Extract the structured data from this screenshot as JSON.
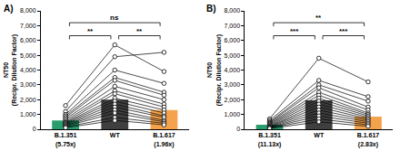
{
  "chart_data": [
    {
      "type": "bar",
      "title": "A)",
      "categories": [
        "B.1.351\n(5.75x)",
        "WT",
        "B.1.617\n(1.96x)"
      ],
      "values": [
        600,
        2000,
        1300
      ],
      "colors": [
        "#2a9d6f",
        "#3f3f3f",
        "#f4a24c"
      ],
      "paired_values": [
        [
          1600,
          5700,
          3900
        ],
        [
          1200,
          4900,
          5200
        ],
        [
          1000,
          4000,
          3100
        ],
        [
          900,
          3500,
          2500
        ],
        [
          800,
          3300,
          2300
        ],
        [
          700,
          2900,
          2000
        ],
        [
          600,
          2600,
          1700
        ],
        [
          500,
          2400,
          1500
        ],
        [
          450,
          2100,
          1300
        ],
        [
          400,
          1900,
          1100
        ],
        [
          350,
          1700,
          900
        ],
        [
          300,
          1500,
          800
        ],
        [
          250,
          1300,
          600
        ],
        [
          200,
          1100,
          500
        ],
        [
          150,
          800,
          400
        ],
        [
          100,
          600,
          300
        ]
      ],
      "brackets": [
        {
          "from": 0,
          "to": 1,
          "text": "**"
        },
        {
          "from": 1,
          "to": 2,
          "text": "**"
        },
        {
          "from": 0,
          "to": 2,
          "text": "ns"
        }
      ],
      "ylabel": "NT50\n(Recipr. Dilution Factor)",
      "ylim": [
        0,
        8000
      ],
      "yticks": [
        0,
        {
          "value": 1000,
          "label": "1,000"
        },
        {
          "value": 2000,
          "label": "2,000"
        },
        {
          "value": 3000,
          "label": "3,000"
        },
        {
          "value": 4000,
          "label": "4,000"
        },
        {
          "value": 5000,
          "label": "5,000"
        },
        {
          "value": 6000,
          "label": "6,000"
        },
        {
          "value": 7000,
          "label": "7,000"
        },
        {
          "value": 8000,
          "label": "8,000"
        }
      ],
      "grid": false
    },
    {
      "type": "bar",
      "title": "B)",
      "categories": [
        "B.1.351\n(11.13x)",
        "WT",
        "B.1.617\n(2.83x)"
      ],
      "values": [
        300,
        1950,
        850
      ],
      "colors": [
        "#2a9d6f",
        "#3f3f3f",
        "#f4a24c"
      ],
      "paired_values": [
        [
          700,
          4800,
          3200
        ],
        [
          600,
          3300,
          2200
        ],
        [
          500,
          3000,
          1900
        ],
        [
          450,
          2800,
          1500
        ],
        [
          400,
          2500,
          1300
        ],
        [
          350,
          2300,
          1100
        ],
        [
          300,
          2100,
          1000
        ],
        [
          250,
          1900,
          900
        ],
        [
          200,
          1700,
          800
        ],
        [
          180,
          1500,
          700
        ],
        [
          150,
          1300,
          600
        ],
        [
          120,
          1100,
          500
        ],
        [
          100,
          900,
          400
        ],
        [
          80,
          700,
          300
        ],
        [
          50,
          500,
          200
        ]
      ],
      "brackets": [
        {
          "from": 0,
          "to": 1,
          "text": "***"
        },
        {
          "from": 1,
          "to": 2,
          "text": "***"
        },
        {
          "from": 0,
          "to": 2,
          "text": "**"
        }
      ],
      "ylabel": "NT50\n(Recipr. Dilution Factor)",
      "ylim": [
        0,
        8000
      ],
      "yticks": [
        0,
        {
          "value": 1000,
          "label": "1,000"
        },
        {
          "value": 2000,
          "label": "2,000"
        },
        {
          "value": 3000,
          "label": "3,000"
        },
        {
          "value": 4000,
          "label": "4,000"
        },
        {
          "value": 5000,
          "label": "5,000"
        },
        {
          "value": 6000,
          "label": "6,000"
        },
        {
          "value": 7000,
          "label": "7,000"
        },
        {
          "value": 8000,
          "label": "8,000"
        }
      ],
      "grid": false
    }
  ]
}
